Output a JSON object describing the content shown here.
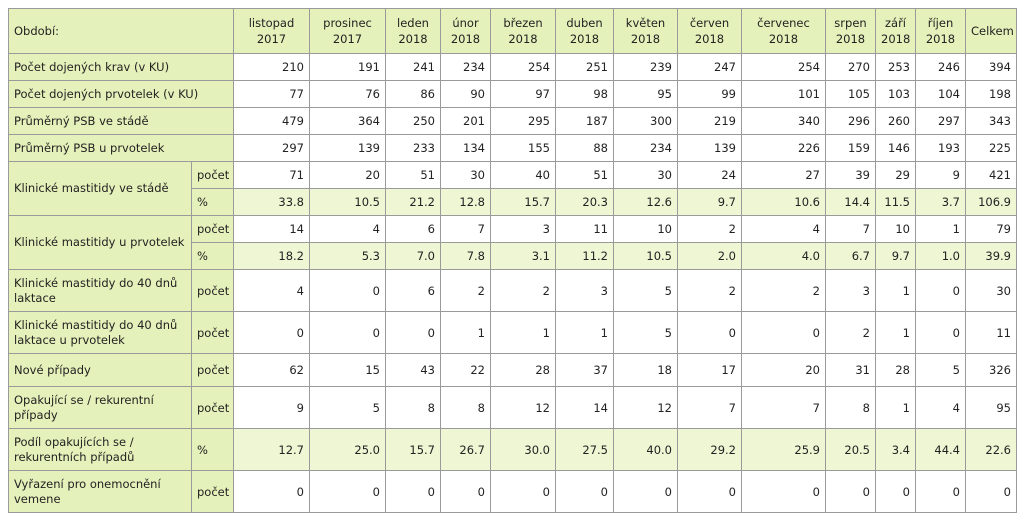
{
  "table": {
    "corner": "Období:",
    "columns": [
      [
        "listopad",
        "2017"
      ],
      [
        "prosinec",
        "2017"
      ],
      [
        "leden",
        "2018"
      ],
      [
        "únor",
        "2018"
      ],
      [
        "březen",
        "2018"
      ],
      [
        "duben",
        "2018"
      ],
      [
        "květen",
        "2018"
      ],
      [
        "červen",
        "2018"
      ],
      [
        "červenec",
        "2018"
      ],
      [
        "srpen",
        "2018"
      ],
      [
        "září",
        "2018"
      ],
      [
        "říjen",
        "2018"
      ]
    ],
    "total_header": "Celkem",
    "rows": [
      {
        "label": "Počet dojených krav (v KU)",
        "values": [
          "210",
          "191",
          "241",
          "234",
          "254",
          "251",
          "239",
          "247",
          "254",
          "270",
          "253",
          "246",
          "394"
        ]
      },
      {
        "label": "Počet dojených prvotelek (v KU)",
        "values": [
          "77",
          "76",
          "86",
          "90",
          "97",
          "98",
          "95",
          "99",
          "101",
          "105",
          "103",
          "104",
          "198"
        ]
      },
      {
        "label": "Průměrný PSB ve stádě",
        "values": [
          "479",
          "364",
          "250",
          "201",
          "295",
          "187",
          "300",
          "219",
          "340",
          "296",
          "260",
          "297",
          "343"
        ]
      },
      {
        "label": "Průměrný PSB u prvotelek",
        "values": [
          "297",
          "139",
          "233",
          "134",
          "155",
          "88",
          "234",
          "139",
          "226",
          "159",
          "146",
          "193",
          "225"
        ]
      },
      {
        "label": "Klinické mastitidy ve stádě",
        "unit": "počet",
        "span": 2,
        "values": [
          "71",
          "20",
          "51",
          "30",
          "40",
          "51",
          "30",
          "24",
          "27",
          "39",
          "29",
          "9",
          "421"
        ]
      },
      {
        "unit": "%",
        "shade": true,
        "values": [
          "33.8",
          "10.5",
          "21.2",
          "12.8",
          "15.7",
          "20.3",
          "12.6",
          "9.7",
          "10.6",
          "14.4",
          "11.5",
          "3.7",
          "106.9"
        ]
      },
      {
        "label": "Klinické mastitidy u prvotelek",
        "unit": "počet",
        "span": 2,
        "values": [
          "14",
          "4",
          "6",
          "7",
          "3",
          "11",
          "10",
          "2",
          "4",
          "7",
          "10",
          "1",
          "79"
        ]
      },
      {
        "unit": "%",
        "shade": true,
        "values": [
          "18.2",
          "5.3",
          "7.0",
          "7.8",
          "3.1",
          "11.2",
          "10.5",
          "2.0",
          "4.0",
          "6.7",
          "9.7",
          "1.0",
          "39.9"
        ]
      },
      {
        "label": "Klinické mastitidy do 40 dnů laktace",
        "unit": "počet",
        "values": [
          "4",
          "0",
          "6",
          "2",
          "2",
          "3",
          "5",
          "2",
          "2",
          "3",
          "1",
          "0",
          "30"
        ]
      },
      {
        "label": "Klinické mastitidy do 40 dnů laktace u prvotelek",
        "unit": "počet",
        "values": [
          "0",
          "0",
          "0",
          "1",
          "1",
          "1",
          "5",
          "0",
          "0",
          "2",
          "1",
          "0",
          "11"
        ]
      },
      {
        "label": "Nové případy",
        "unit": "počet",
        "values": [
          "62",
          "15",
          "43",
          "22",
          "28",
          "37",
          "18",
          "17",
          "20",
          "31",
          "28",
          "5",
          "326"
        ]
      },
      {
        "label": "Opakující se / rekurentní případy",
        "unit": "počet",
        "values": [
          "9",
          "5",
          "8",
          "8",
          "12",
          "14",
          "12",
          "7",
          "7",
          "8",
          "1",
          "4",
          "95"
        ]
      },
      {
        "label": "Podíl opakujících se / rekurentních případů",
        "unit": "%",
        "shade": true,
        "values": [
          "12.7",
          "25.0",
          "15.7",
          "26.7",
          "30.0",
          "27.5",
          "40.0",
          "29.2",
          "25.9",
          "20.5",
          "3.4",
          "44.4",
          "22.6"
        ]
      },
      {
        "label": "Vyřazení pro onemocnění vemene",
        "unit": "počet",
        "values": [
          "0",
          "0",
          "0",
          "0",
          "0",
          "0",
          "0",
          "0",
          "0",
          "0",
          "0",
          "0",
          "0"
        ]
      }
    ]
  }
}
